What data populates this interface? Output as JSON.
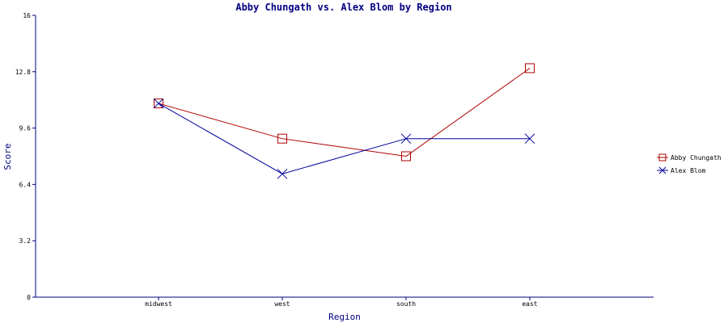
{
  "chart_data": {
    "type": "line",
    "title": "Abby Chungath vs. Alex Blom by Region",
    "xlabel": "Region",
    "ylabel": "Score",
    "categories": [
      "midwest",
      "west",
      "south",
      "east"
    ],
    "ylim": [
      0,
      16
    ],
    "yticks": [
      "0",
      "3.2",
      "6.4",
      "9.6",
      "12.8",
      "16"
    ],
    "legend_position": "right",
    "series": [
      {
        "name": "Abby Chungath",
        "color": "#b00000",
        "marker": "square",
        "values": [
          11,
          9,
          8,
          13
        ]
      },
      {
        "name": "Alex Blom",
        "color": "#000099",
        "marker": "x",
        "values": [
          11,
          7,
          9,
          9
        ]
      }
    ],
    "axis_color": "#000080"
  }
}
